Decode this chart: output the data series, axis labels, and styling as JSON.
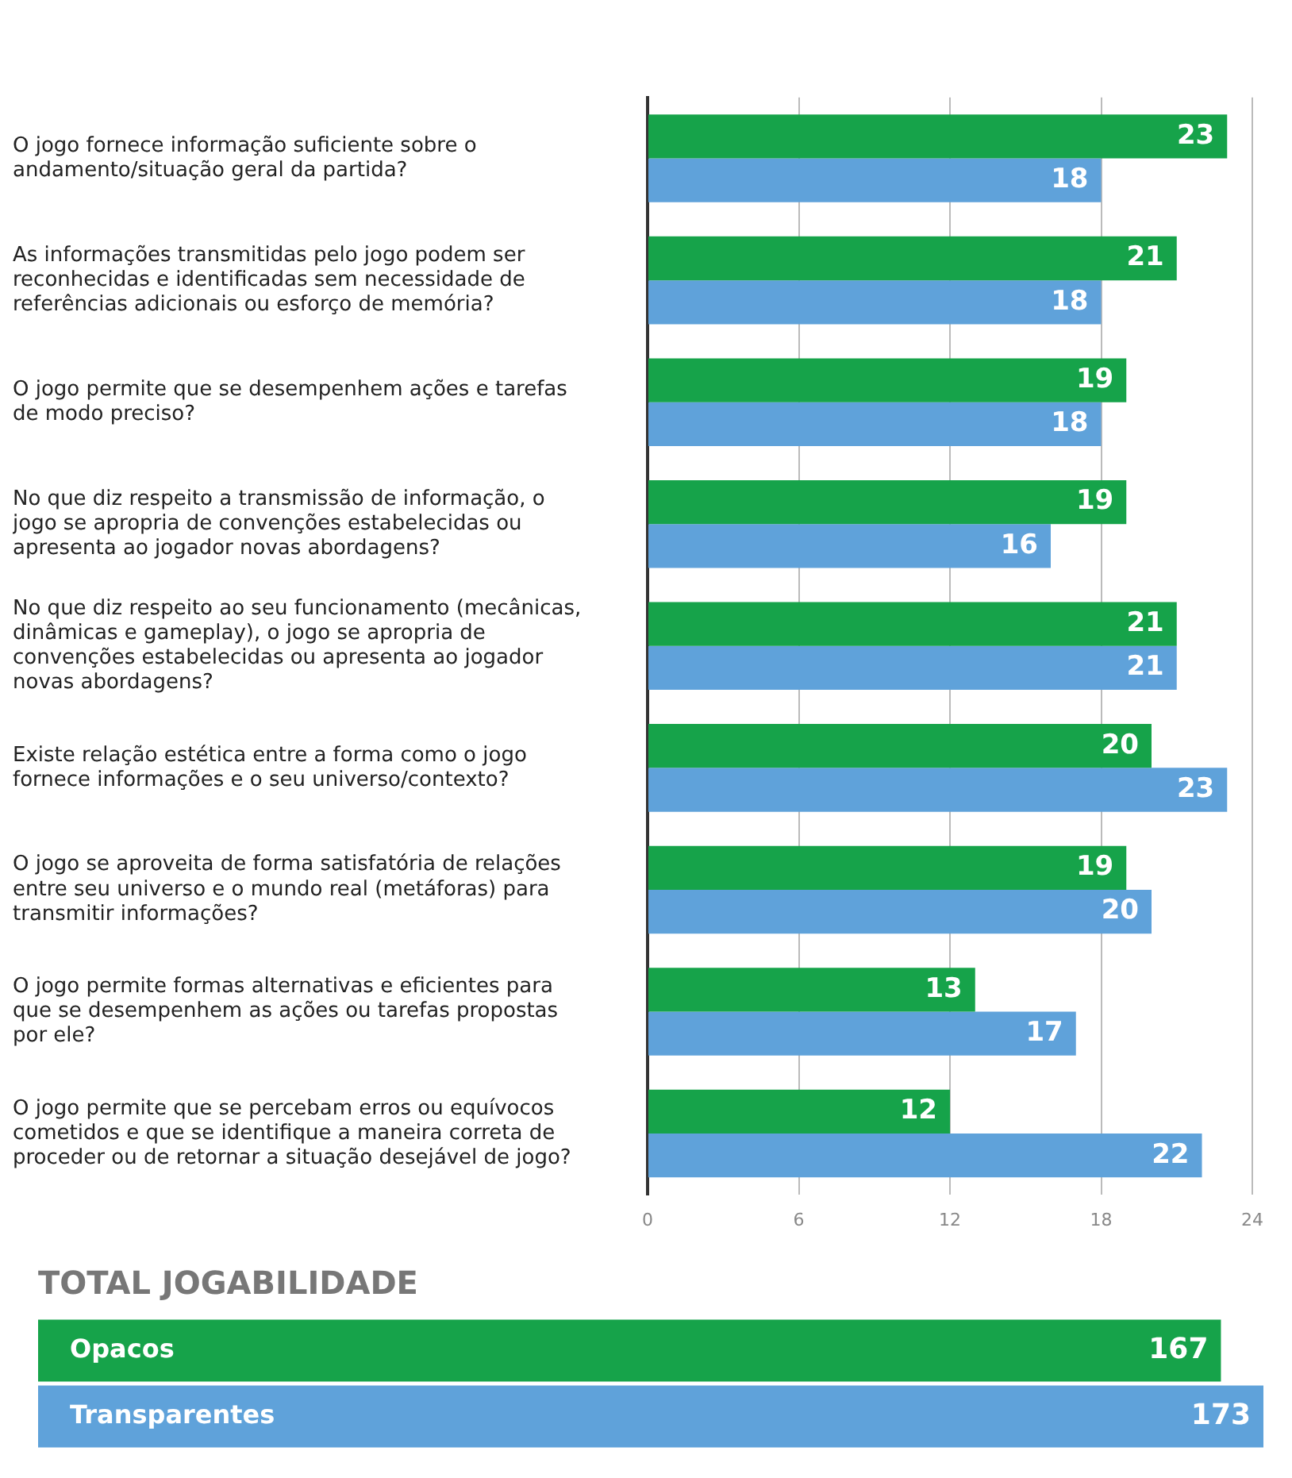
{
  "chart_data": [
    {
      "type": "bar",
      "orientation": "horizontal",
      "categories": [
        "O jogo fornece informação suficiente sobre o andamento/situação geral da partida?",
        "As informações transmitidas pelo jogo podem ser reconhecidas e identificadas sem necessidade de referências adicionais ou esforço de memória?",
        "O jogo permite que se desempenhem ações e tarefas de modo preciso?",
        "No que diz respeito a transmissão de informação, o jogo se apropria de convenções estabelecidas ou apresenta ao jogador novas abordagens?",
        "No que diz respeito ao seu funcionamento (mecânicas, dinâmicas e gameplay), o jogo se apropria de convenções estabelecidas ou apresenta ao jogador novas abordagens?",
        "Existe relação estética entre a forma como o jogo fornece informações e o seu universo/contexto?",
        "O jogo se aproveita de forma satisfatória de relações entre seu universo e o mundo real (metáforas) para transmitir informações?",
        "O jogo permite formas alternativas e eficientes para que se desempenhem as ações ou tarefas propostas por ele?",
        "O jogo permite que se percebam erros ou equívocos cometidos e que se identifique a maneira correta de proceder ou de retornar a situação desejável de jogo?"
      ],
      "series": [
        {
          "color": "#16a34a",
          "values": [
            23,
            21,
            19,
            19,
            21,
            20,
            19,
            13,
            12
          ]
        },
        {
          "color": "#5fa2da",
          "values": [
            18,
            18,
            18,
            16,
            21,
            23,
            20,
            17,
            22
          ]
        }
      ],
      "xlim": [
        0,
        24
      ],
      "xticks": [
        0,
        6,
        12,
        18,
        24
      ],
      "grid": "x",
      "data_labels": true
    },
    {
      "type": "bar",
      "orientation": "horizontal",
      "title": "TOTAL JOGABILIDADE",
      "categories": [
        "Opacos",
        "Transparentes"
      ],
      "values": [
        167,
        173
      ],
      "colors": [
        "#16a34a",
        "#5fa2da"
      ],
      "data_labels": true,
      "tick_labels": false
    }
  ]
}
